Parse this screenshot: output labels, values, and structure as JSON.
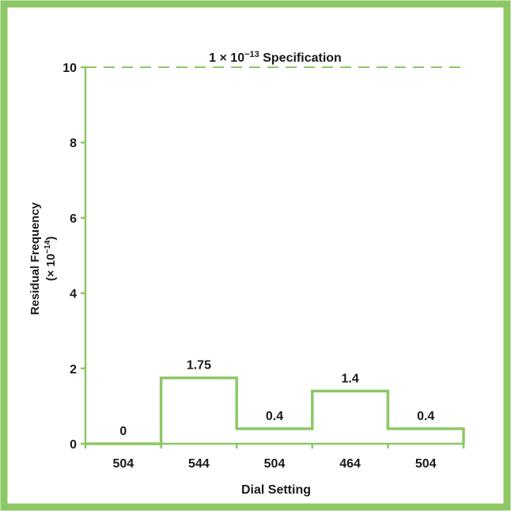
{
  "chart_data": {
    "type": "bar",
    "step_outline": true,
    "categories": [
      "504",
      "544",
      "504",
      "464",
      "504"
    ],
    "values": [
      0,
      1.75,
      0.4,
      1.4,
      0.4
    ],
    "data_labels": [
      "0",
      "1.75",
      "0.4",
      "1.4",
      "0.4"
    ],
    "title": "",
    "xlabel": "Dial Setting",
    "ylabel": "Residual Frequency",
    "ylabel_units_prefix": "(× 10",
    "ylabel_units_exp": "−14",
    "ylabel_units_suffix": ")",
    "ylim": [
      0,
      10
    ],
    "yticks": [
      0,
      2,
      4,
      6,
      8,
      10
    ],
    "ytick_labels": [
      "0",
      "2",
      "4",
      "6",
      "8",
      "10"
    ],
    "reference_line": {
      "value": 10,
      "style": "dashed",
      "label_prefix": "1 × 10",
      "label_exp": "−13",
      "label_suffix": " Specification"
    },
    "grid": false,
    "legend": "none",
    "colors": {
      "frame": "#8cc865",
      "series": "#8cc865",
      "axis": "#8cc865",
      "text": "#1a1a1a"
    }
  }
}
